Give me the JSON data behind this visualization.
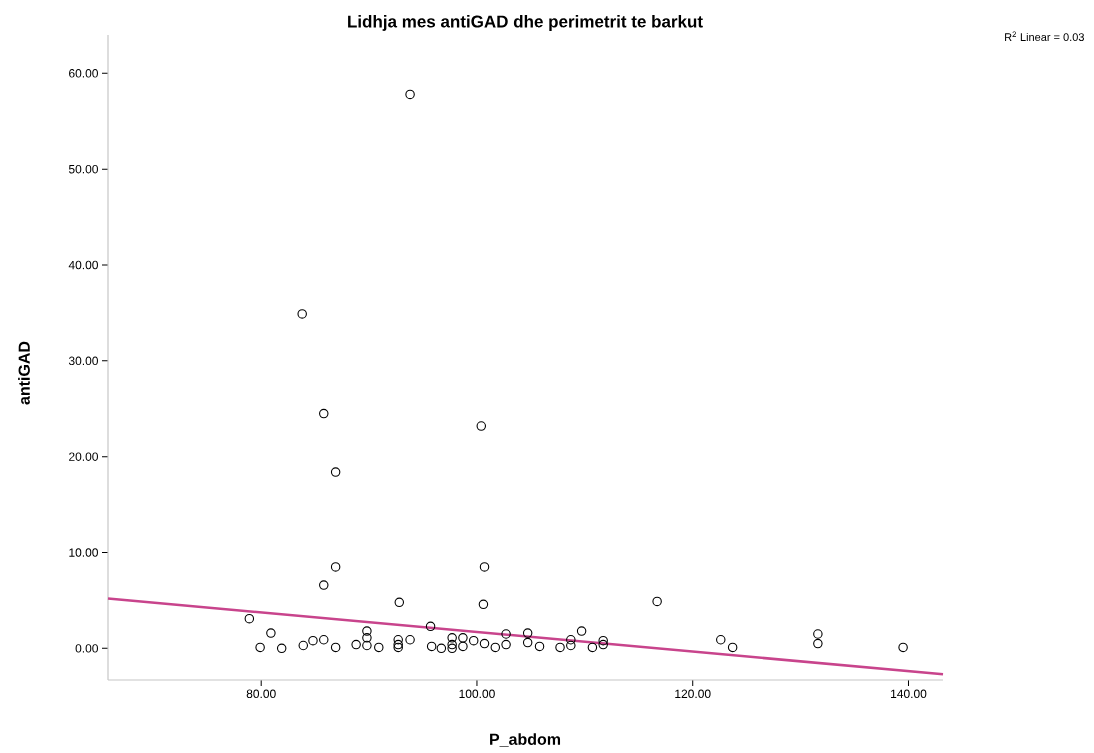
{
  "chart_data": {
    "type": "scatter",
    "title": "Lidhja mes antiGAD dhe perimetrit te barkut",
    "xlabel": "P_abdom",
    "ylabel": "antiGAD",
    "annotations": [
      "R$^{2}$ Linear = 0.03"
    ],
    "xlim": [
      65.8,
      143.2
    ],
    "ylim": [
      -3.3,
      64
    ],
    "xticks": [
      {
        "value": 80,
        "label": "80.00"
      },
      {
        "value": 100,
        "label": "100.00"
      },
      {
        "value": 120,
        "label": "120.00"
      },
      {
        "value": 140,
        "label": "140.00"
      }
    ],
    "yticks": [
      {
        "value": 0,
        "label": "0.00"
      },
      {
        "value": 10,
        "label": "10.00"
      },
      {
        "value": 20,
        "label": "20.00"
      },
      {
        "value": 30,
        "label": "30.00"
      },
      {
        "value": 40,
        "label": "40.00"
      },
      {
        "value": 50,
        "label": "50.00"
      },
      {
        "value": 60,
        "label": "60.00"
      }
    ],
    "grid": false,
    "marker": "circle",
    "series": [
      {
        "color": "#000000",
        "x": [
          93.8,
          83.8,
          85.8,
          100.4,
          86.9,
          86.9,
          100.7,
          85.8,
          92.8,
          100.6,
          116.7,
          78.9,
          95.7,
          109.7,
          80.9,
          79.9,
          81.9,
          83.9,
          84.8,
          85.8,
          86.9,
          88.8,
          89.8,
          89.8,
          89.8,
          90.9,
          92.7,
          92.7,
          92.7,
          93.8,
          95.8,
          96.7,
          97.7,
          97.7,
          97.7,
          98.7,
          98.7,
          99.7,
          100.7,
          101.7,
          102.7,
          102.7,
          104.7,
          104.7,
          105.8,
          107.7,
          108.7,
          108.7,
          110.7,
          111.7,
          111.7,
          122.6,
          123.7,
          131.6,
          131.6,
          139.5
        ],
        "values": [
          57.8,
          34.9,
          24.5,
          23.2,
          18.4,
          8.5,
          8.5,
          6.6,
          4.8,
          4.6,
          4.9,
          3.1,
          2.3,
          1.8,
          1.6,
          0.1,
          0,
          0.3,
          0.8,
          0.9,
          0.1,
          0.4,
          1.8,
          1.1,
          0.3,
          0.1,
          0.9,
          0.4,
          0.1,
          0.9,
          0.2,
          0,
          1.1,
          0.4,
          0,
          1.1,
          0.2,
          0.8,
          0.5,
          0.1,
          1.5,
          0.4,
          1.6,
          0.6,
          0.2,
          0.1,
          0.9,
          0.3,
          0.1,
          0.8,
          0.4,
          0.9,
          0.1,
          1.5,
          0.5,
          0.1
        ]
      },
      {
        "type": "line",
        "marker": "none",
        "color": "#c8448c",
        "x": [
          65.8,
          143.2
        ],
        "values": [
          5.2,
          -2.7
        ]
      }
    ]
  }
}
